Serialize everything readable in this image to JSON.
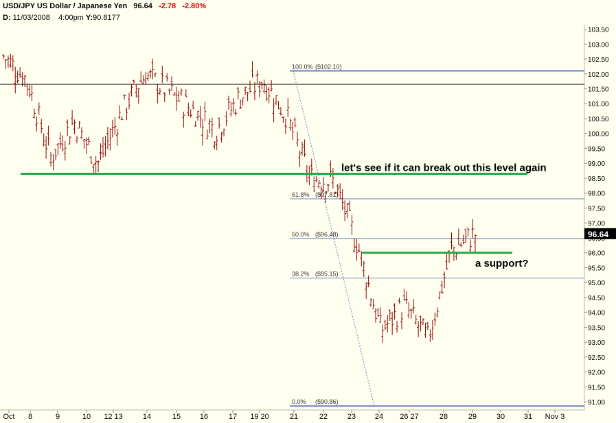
{
  "header": {
    "symbol": "USD/JPY US Dollar / Japanese Yen",
    "last": "96.64",
    "change": "-2.78",
    "change_pct": "-2.80%",
    "d_label": "D:",
    "date": "11/03/2008",
    "time": "4:00pm",
    "y_label": "Y:",
    "y_value": "90.8177"
  },
  "chart_data": {
    "type": "ohlc",
    "ylim": [
      90.75,
      103.65
    ],
    "yticks": [
      91.0,
      91.5,
      92.0,
      92.5,
      93.0,
      93.5,
      94.0,
      94.5,
      95.0,
      95.5,
      96.0,
      96.5,
      97.0,
      97.5,
      98.0,
      98.5,
      99.0,
      99.5,
      100.0,
      100.5,
      101.0,
      101.5,
      102.0,
      102.5,
      103.0,
      103.5
    ],
    "ytick_labels": [
      "91.00",
      "91.50",
      "92.00",
      "92.50",
      "93.00",
      "93.50",
      "94.00",
      "94.50",
      "95.00",
      "95.50",
      "96.00",
      "96.50",
      "97.00",
      "97.50",
      "98.00",
      "98.50",
      "99.00",
      "99.50",
      "100.00",
      "100.50",
      "101.00",
      "101.50",
      "102.00",
      "102.50",
      "103.00",
      "103.50"
    ],
    "x_labels": [
      "Oct",
      "8",
      "9",
      "10",
      "12 13",
      "14",
      "15",
      "16",
      "17",
      "19 20",
      "21",
      "22",
      "23",
      "24",
      "26 27",
      "28",
      "29",
      "30",
      "31",
      "Nov 3"
    ],
    "last_price_label": "96.64",
    "series_color": "#8b0000",
    "session_closes": [
      102.6,
      101.8,
      99.2,
      100.4,
      99.0,
      100.7,
      102.0,
      101.4,
      100.8,
      100.1,
      101.2,
      101.8,
      100.6,
      98.5,
      98.4,
      96.3,
      93.4,
      94.2,
      93.1,
      96.1,
      96.64
    ],
    "lines": [
      {
        "kind": "horizontal",
        "price": 101.65,
        "color": "#000000"
      },
      {
        "kind": "horizontal",
        "price": 98.65,
        "color": "#22aa44"
      },
      {
        "kind": "horizontal",
        "price": 96.0,
        "color": "#22aa44"
      }
    ],
    "fibonacci": {
      "color": "#6a7fc4",
      "levels": [
        {
          "pct": "100.0%",
          "label": "($102.10)",
          "price": 102.1
        },
        {
          "pct": "61.8%",
          "label": "($97.81)",
          "price": 97.81
        },
        {
          "pct": "50.0%",
          "label": "($96.48)",
          "price": 96.48
        },
        {
          "pct": "38.2%",
          "label": "($95.15)",
          "price": 95.15
        },
        {
          "pct": "0.0%",
          "label": "($90.86)",
          "price": 90.86
        }
      ]
    },
    "annotations": [
      {
        "text": "let's see if it can break out this level again",
        "price": 98.85
      },
      {
        "text": "a support?",
        "price": 95.65
      }
    ]
  }
}
